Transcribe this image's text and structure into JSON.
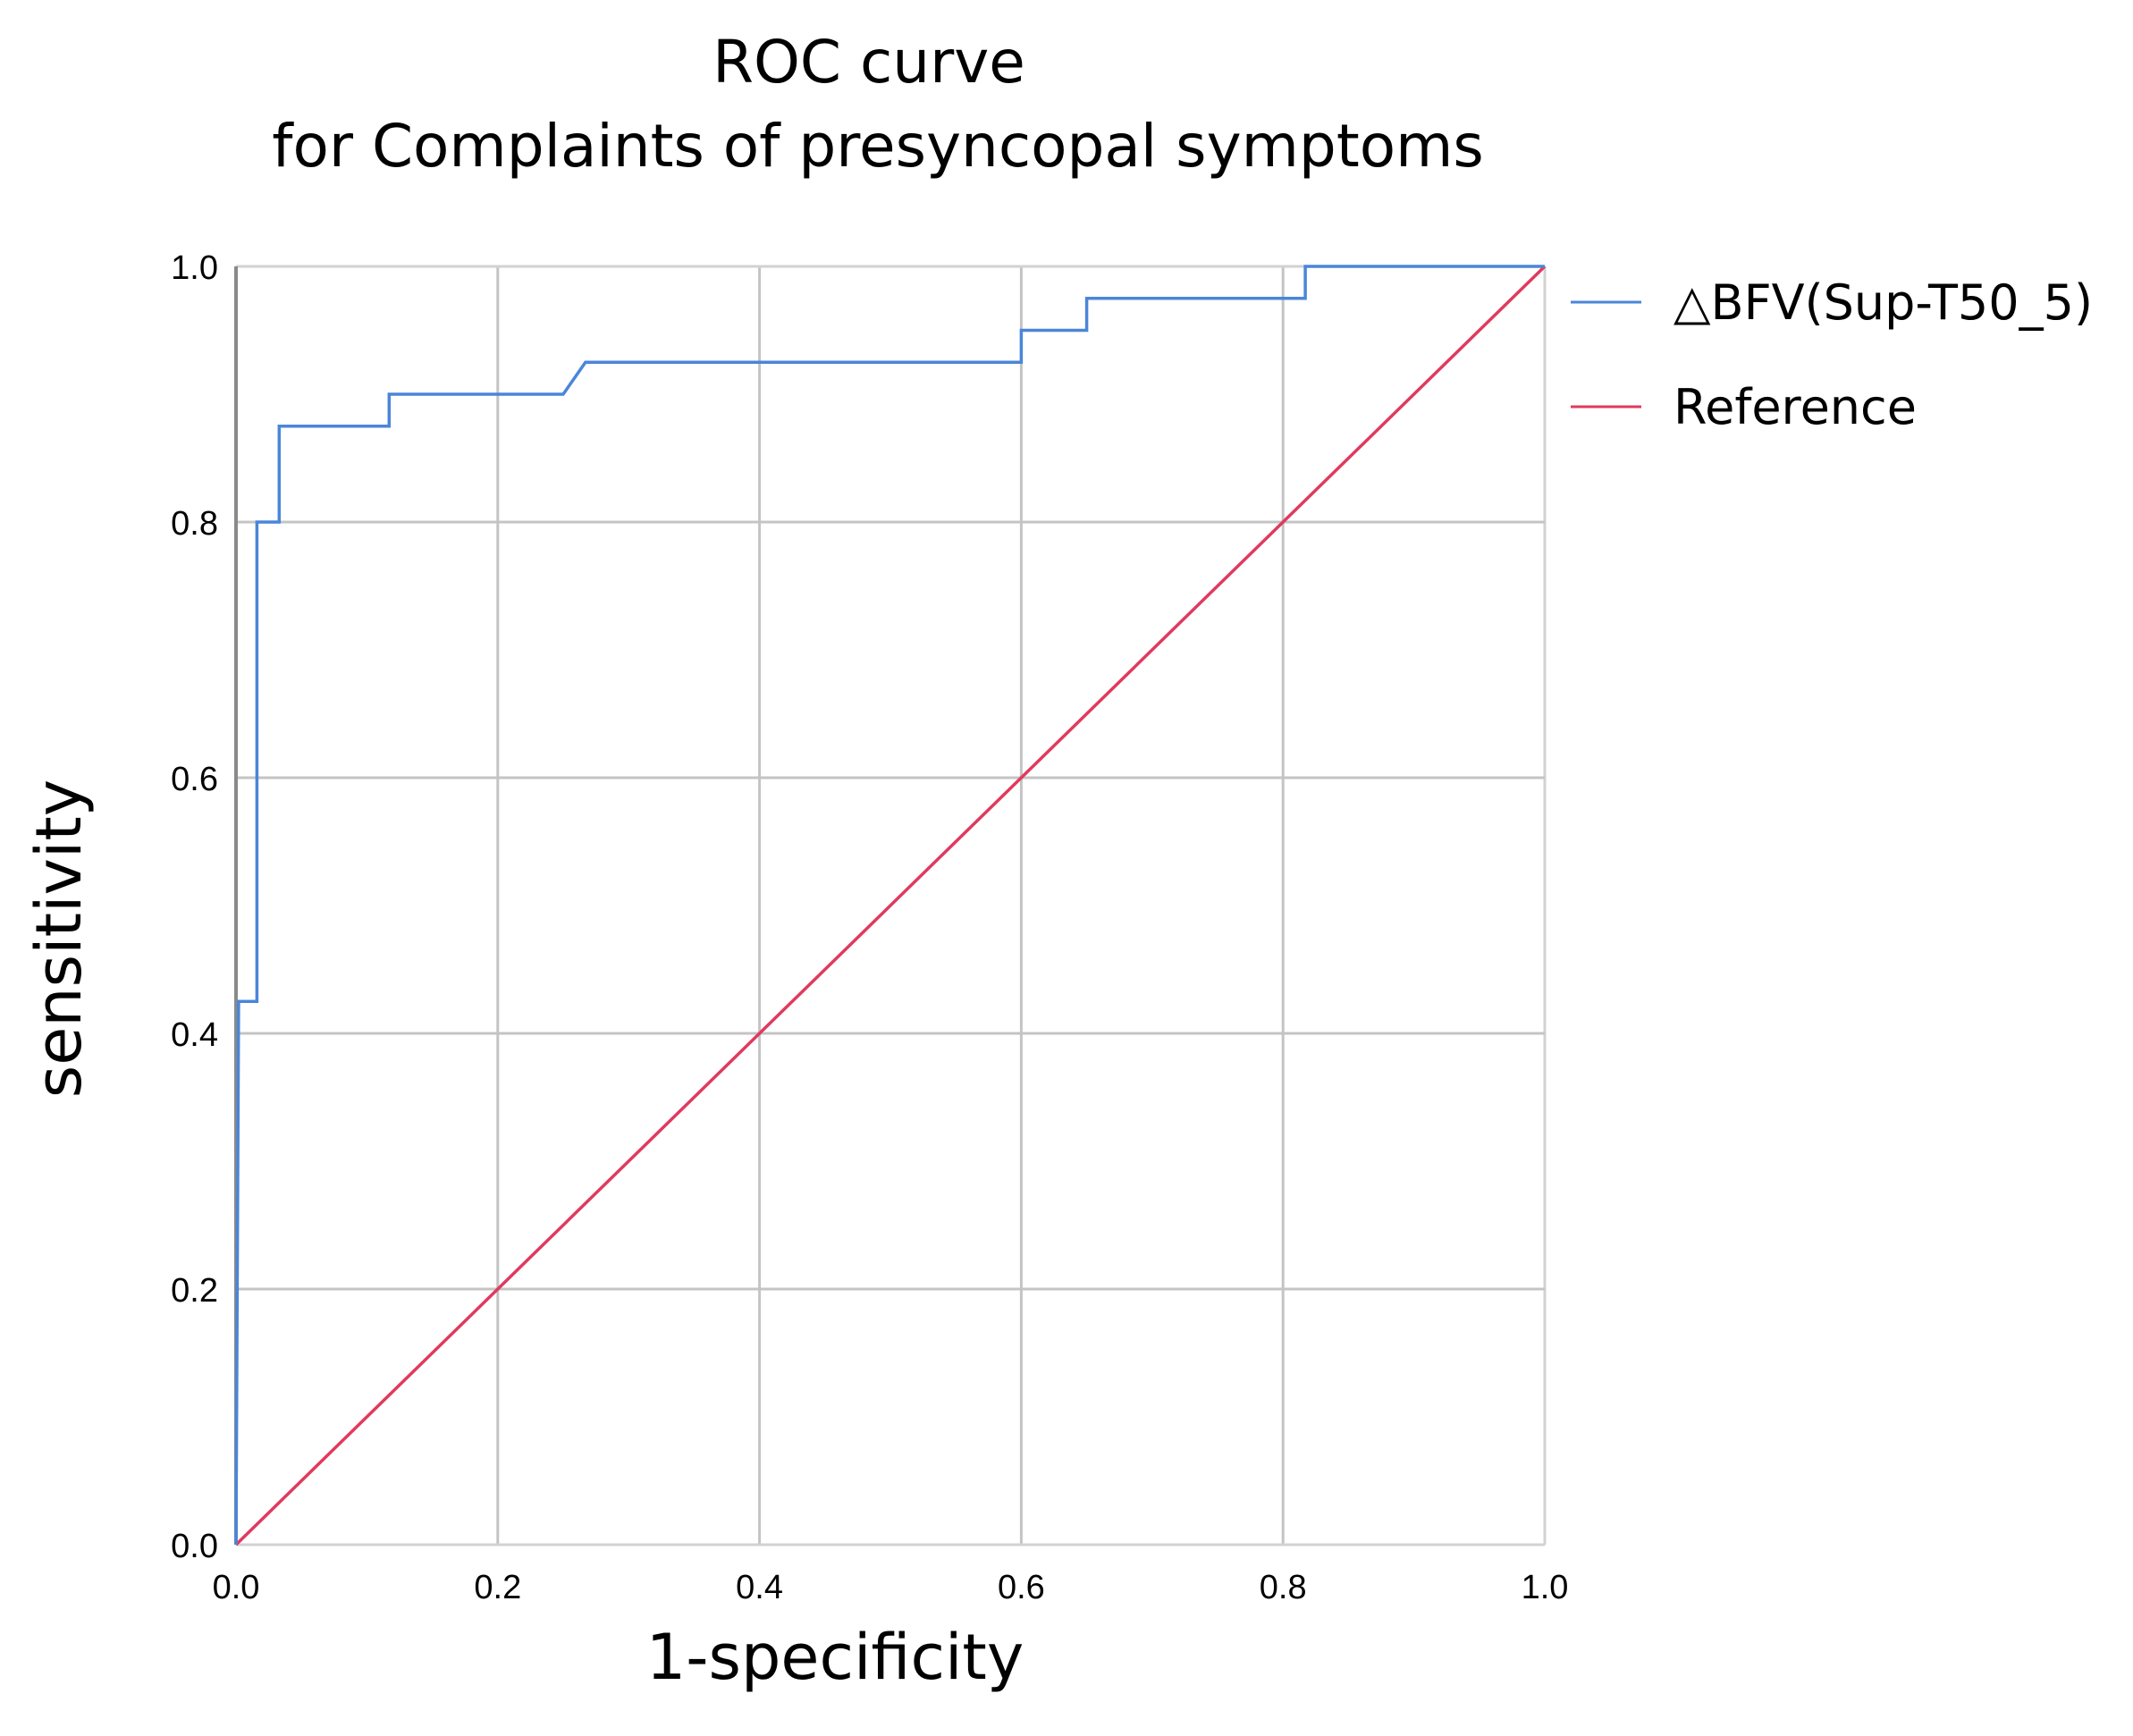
{
  "chart_data": {
    "type": "line",
    "title": [
      "ROC curve",
      "for Complaints of presyncopal symptoms"
    ],
    "xlabel": "1-specificity",
    "ylabel": "sensitivity",
    "xlim": [
      0.0,
      1.0
    ],
    "ylim": [
      0.0,
      1.0
    ],
    "grid": true,
    "legend_position": "right",
    "x_ticks": [
      "0.0",
      "0.2",
      "0.4",
      "0.6",
      "0.8",
      "1.0"
    ],
    "y_ticks": [
      "0.0",
      "0.2",
      "0.4",
      "0.6",
      "0.8",
      "1.0"
    ],
    "series": [
      {
        "name": "△BFV(Sup-T50_5)",
        "color": "#4a86d8",
        "points": [
          [
            0.0,
            0.0
          ],
          [
            0.002,
            0.425
          ],
          [
            0.016,
            0.425
          ],
          [
            0.016,
            0.8
          ],
          [
            0.033,
            0.8
          ],
          [
            0.033,
            0.875
          ],
          [
            0.117,
            0.875
          ],
          [
            0.117,
            0.9
          ],
          [
            0.25,
            0.9
          ],
          [
            0.267,
            0.925
          ],
          [
            0.6,
            0.925
          ],
          [
            0.6,
            0.95
          ],
          [
            0.65,
            0.95
          ],
          [
            0.65,
            0.975
          ],
          [
            0.817,
            0.975
          ],
          [
            0.817,
            1.0
          ],
          [
            1.0,
            1.0
          ]
        ]
      },
      {
        "name": "Reference",
        "color": "#e03a5e",
        "points": [
          [
            0.0,
            0.0
          ],
          [
            1.0,
            1.0
          ]
        ]
      }
    ]
  }
}
